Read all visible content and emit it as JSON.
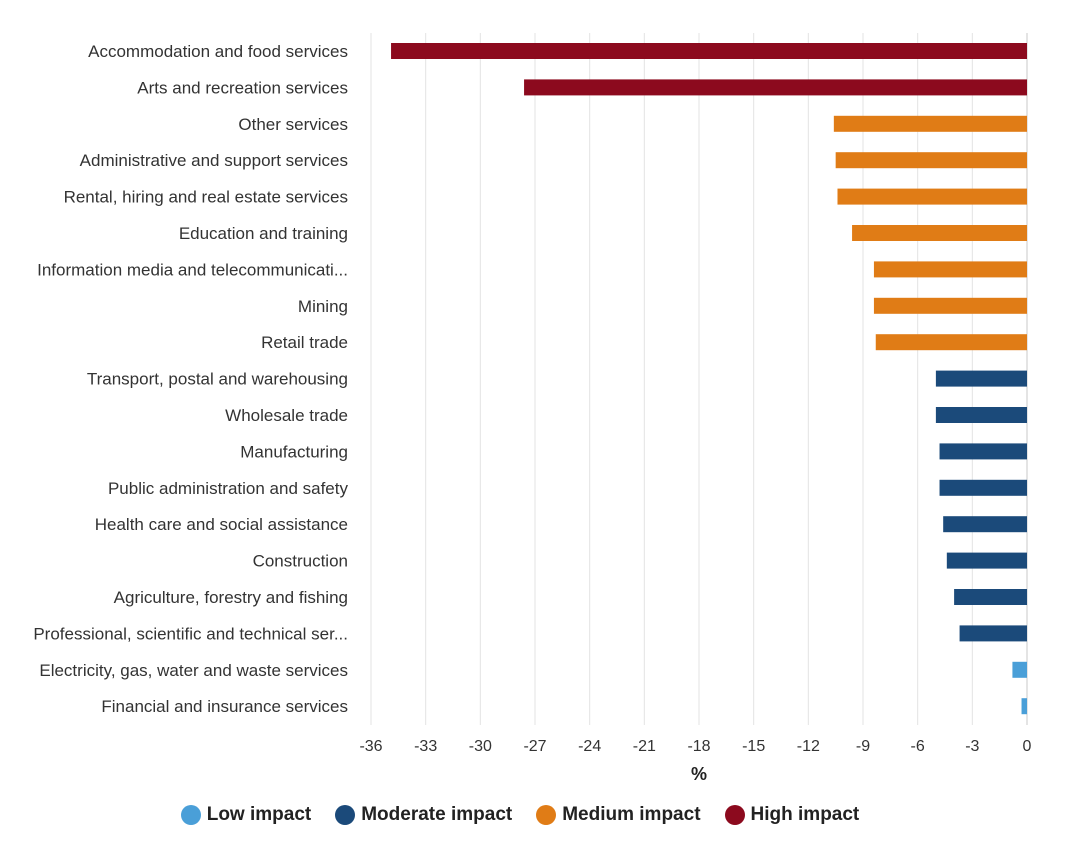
{
  "chart_data": {
    "type": "bar",
    "orientation": "horizontal",
    "xlabel": "%",
    "xlim": [
      -36,
      0
    ],
    "xticks": [
      -36,
      -33,
      -30,
      -27,
      -24,
      -21,
      -18,
      -15,
      -12,
      -9,
      -6,
      -3,
      0
    ],
    "grid": "vertical",
    "legend_position": "bottom",
    "categories": [
      "Accommodation and food services",
      "Arts and recreation services",
      "Other services",
      "Administrative and support services",
      "Rental, hiring and real estate services",
      "Education and training",
      "Information media and telecommunicati...",
      "Mining",
      "Retail trade",
      "Transport, postal and warehousing",
      "Wholesale trade",
      "Manufacturing",
      "Public administration and safety",
      "Health care and social assistance",
      "Construction",
      "Agriculture, forestry and fishing",
      "Professional, scientific and technical ser...",
      "Electricity, gas, water and waste services",
      "Financial and insurance services"
    ],
    "values": [
      -34.9,
      -27.6,
      -10.6,
      -10.5,
      -10.4,
      -9.6,
      -8.4,
      -8.4,
      -8.3,
      -5.0,
      -5.0,
      -4.8,
      -4.8,
      -4.6,
      -4.4,
      -4.0,
      -3.7,
      -0.8,
      -0.3
    ],
    "impact": [
      "high",
      "high",
      "medium",
      "medium",
      "medium",
      "medium",
      "medium",
      "medium",
      "medium",
      "moderate",
      "moderate",
      "moderate",
      "moderate",
      "moderate",
      "moderate",
      "moderate",
      "moderate",
      "low",
      "low"
    ],
    "legend": [
      {
        "key": "low",
        "label": "Low impact",
        "color": "#4a9fd8"
      },
      {
        "key": "moderate",
        "label": "Moderate impact",
        "color": "#1b4a7a"
      },
      {
        "key": "medium",
        "label": "Medium impact",
        "color": "#e07c16"
      },
      {
        "key": "high",
        "label": "High impact",
        "color": "#8c0a1e"
      }
    ]
  }
}
